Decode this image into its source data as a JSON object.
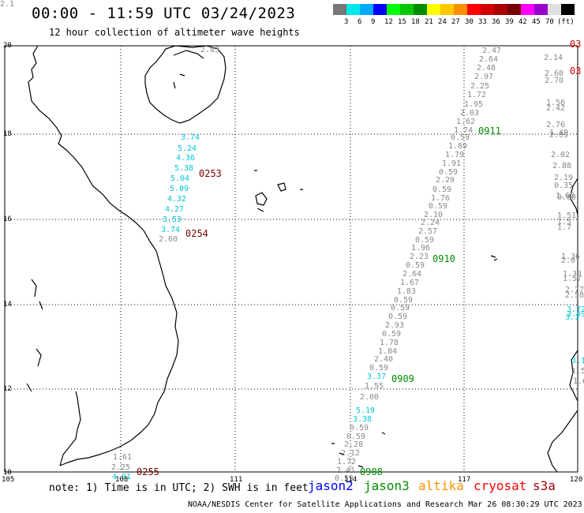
{
  "title": "00:00 - 11:59 UTC 03/24/2023",
  "subtitle": "12 hour collection of altimeter wave heights",
  "scale": {
    "colors": [
      "#777777",
      "#00e8e8",
      "#00aaff",
      "#0000ff",
      "#00ff00",
      "#00c800",
      "#008c00",
      "#ffff00",
      "#ffc800",
      "#ff9000",
      "#ff0000",
      "#d20000",
      "#aa0000",
      "#780000",
      "#ff00ff",
      "#9900cc",
      "#e0e0e0",
      "#000000"
    ],
    "labels": [
      "3",
      "6",
      "9",
      "12",
      "15",
      "18",
      "21",
      "24",
      "27",
      "30",
      "33",
      "36",
      "39",
      "42",
      "45",
      "70",
      "(ft)"
    ]
  },
  "lat_labels": [
    "20",
    "18",
    "16",
    "14",
    "12",
    "10"
  ],
  "lon_labels": [
    "105",
    "108",
    "111",
    "114",
    "117",
    "120"
  ],
  "note": "note: 1) Time is in UTC; 2) SWH is in feet",
  "satellites": [
    {
      "name": "jason2",
      "color": "#0000ff"
    },
    {
      "name": "jason3",
      "color": "#008c00"
    },
    {
      "name": "altika",
      "color": "#ff9000"
    },
    {
      "name": "cryosat",
      "color": "#ff0000"
    },
    {
      "name": "s3a",
      "color": "#aa0000"
    }
  ],
  "credit": "NOAA/NESDIS Center for Satellite Applications and Research   Mar 26 08:30:29 UTC 2023",
  "map_labels": {
    "wave_heights": [
      {
        "t": "2.83",
        "c": "#888888"
      },
      {
        "t": "3.74",
        "c": "#00c8d8"
      },
      {
        "t": "5.24",
        "c": "#00c8d8"
      },
      {
        "t": "4.36",
        "c": "#00c8d8"
      },
      {
        "t": "5.38",
        "c": "#00c8d8"
      },
      {
        "t": "5.04",
        "c": "#00c8d8"
      },
      {
        "t": "5.09",
        "c": "#00c8d8"
      },
      {
        "t": "4.32",
        "c": "#00c8d8"
      },
      {
        "t": "4.27",
        "c": "#00c8d8"
      },
      {
        "t": "3.53",
        "c": "#00c8d8"
      },
      {
        "t": "3.74",
        "c": "#00c8d8"
      },
      {
        "t": "2.60",
        "c": "#888888"
      },
      {
        "t": "1.61",
        "c": "#888888"
      },
      {
        "t": "2.25",
        "c": "#888888"
      },
      {
        "t": "4.01",
        "c": "#00c8d8"
      },
      {
        "t": "2.47",
        "c": "#888888"
      },
      {
        "t": "2.64",
        "c": "#888888"
      },
      {
        "t": "2.48",
        "c": "#888888"
      },
      {
        "t": "2.97",
        "c": "#888888"
      },
      {
        "t": "2.25",
        "c": "#888888"
      },
      {
        "t": "1.72",
        "c": "#888888"
      },
      {
        "t": "1.95",
        "c": "#888888"
      },
      {
        "t": "2.03",
        "c": "#888888"
      },
      {
        "t": "1.62",
        "c": "#888888"
      },
      {
        "t": "1.74",
        "c": "#888888"
      },
      {
        "t": "0.59",
        "c": "#888888"
      },
      {
        "t": "1.89",
        "c": "#888888"
      },
      {
        "t": "1.79",
        "c": "#888888"
      },
      {
        "t": "1.91",
        "c": "#888888"
      },
      {
        "t": "0.59",
        "c": "#888888"
      },
      {
        "t": "2.29",
        "c": "#888888"
      },
      {
        "t": "0.59",
        "c": "#888888"
      },
      {
        "t": "1.76",
        "c": "#888888"
      },
      {
        "t": "0.59",
        "c": "#888888"
      },
      {
        "t": "2.10",
        "c": "#888888"
      },
      {
        "t": "2.24",
        "c": "#888888"
      },
      {
        "t": "2.57",
        "c": "#888888"
      },
      {
        "t": "0.59",
        "c": "#888888"
      },
      {
        "t": "1.96",
        "c": "#888888"
      },
      {
        "t": "2.23",
        "c": "#888888"
      },
      {
        "t": "0.59",
        "c": "#888888"
      },
      {
        "t": "2.64",
        "c": "#888888"
      },
      {
        "t": "1.67",
        "c": "#888888"
      },
      {
        "t": "1.83",
        "c": "#888888"
      },
      {
        "t": "0.59",
        "c": "#888888"
      },
      {
        "t": "0.59",
        "c": "#888888"
      },
      {
        "t": "0.59",
        "c": "#888888"
      },
      {
        "t": "2.93",
        "c": "#888888"
      },
      {
        "t": "0.59",
        "c": "#888888"
      },
      {
        "t": "1.78",
        "c": "#888888"
      },
      {
        "t": "1.84",
        "c": "#888888"
      },
      {
        "t": "2.40",
        "c": "#888888"
      },
      {
        "t": "0.59",
        "c": "#888888"
      },
      {
        "t": "3.37",
        "c": "#00c8d8"
      },
      {
        "t": "1.55",
        "c": "#888888"
      },
      {
        "t": "2.00",
        "c": "#888888"
      },
      {
        "t": "5.19",
        "c": "#00c8d8"
      },
      {
        "t": "3.38",
        "c": "#00c8d8"
      },
      {
        "t": "0.59",
        "c": "#888888"
      },
      {
        "t": "0.59",
        "c": "#888888"
      },
      {
        "t": "2.28",
        "c": "#888888"
      },
      {
        "t": "2.12",
        "c": "#888888"
      },
      {
        "t": "1.72",
        "c": "#888888"
      },
      {
        "t": "2.41",
        "c": "#888888"
      },
      {
        "t": "0.59",
        "c": "#888888"
      },
      {
        "t": "2.14",
        "c": "#888888"
      },
      {
        "t": "2.60",
        "c": "#888888"
      },
      {
        "t": "2.70",
        "c": "#888888"
      },
      {
        "t": "1.56",
        "c": "#888888"
      },
      {
        "t": "2.42",
        "c": "#888888"
      },
      {
        "t": "2.76",
        "c": "#888888"
      },
      {
        "t": "1.49",
        "c": "#888888"
      },
      {
        "t": "2.09",
        "c": "#888888"
      },
      {
        "t": "2.02",
        "c": "#888888"
      },
      {
        "t": "2.88",
        "c": "#888888"
      },
      {
        "t": "2.19",
        "c": "#888888"
      },
      {
        "t": "0.35",
        "c": "#888888"
      },
      {
        "t": "1.68",
        "c": "#888888"
      },
      {
        "t": "0.60",
        "c": "#888888"
      },
      {
        "t": "1.51",
        "c": "#888888"
      },
      {
        "t": "1.5",
        "c": "#888888"
      },
      {
        "t": "1.7",
        "c": "#888888"
      },
      {
        "t": "2.0",
        "c": "#888888"
      },
      {
        "t": "1.36",
        "c": "#888888"
      },
      {
        "t": "1.33",
        "c": "#888888"
      },
      {
        "t": "1.57",
        "c": "#888888"
      },
      {
        "t": "2.77",
        "c": "#888888"
      },
      {
        "t": "2.58",
        "c": "#888888"
      },
      {
        "t": "3.72",
        "c": "#00c8d8"
      },
      {
        "t": "3.49",
        "c": "#00c8d8"
      },
      {
        "t": "3.1",
        "c": "#00c8d8"
      },
      {
        "t": "3.18",
        "c": "#00c8d8"
      },
      {
        "t": "1.5",
        "c": "#888888"
      },
      {
        "t": "1.6",
        "c": "#888888"
      },
      {
        "t": "2.1",
        "c": "#888888"
      }
    ],
    "pass_times": [
      {
        "t": "0253",
        "c": "#780000"
      },
      {
        "t": "0254",
        "c": "#780000"
      },
      {
        "t": "0255",
        "c": "#780000"
      },
      {
        "t": "0911",
        "c": "#008c00"
      },
      {
        "t": "0910",
        "c": "#008c00"
      },
      {
        "t": "0909",
        "c": "#008c00"
      },
      {
        "t": "0908",
        "c": "#008c00"
      },
      {
        "t": "03",
        "c": "#dd0000"
      },
      {
        "t": "03",
        "c": "#dd0000"
      }
    ]
  }
}
